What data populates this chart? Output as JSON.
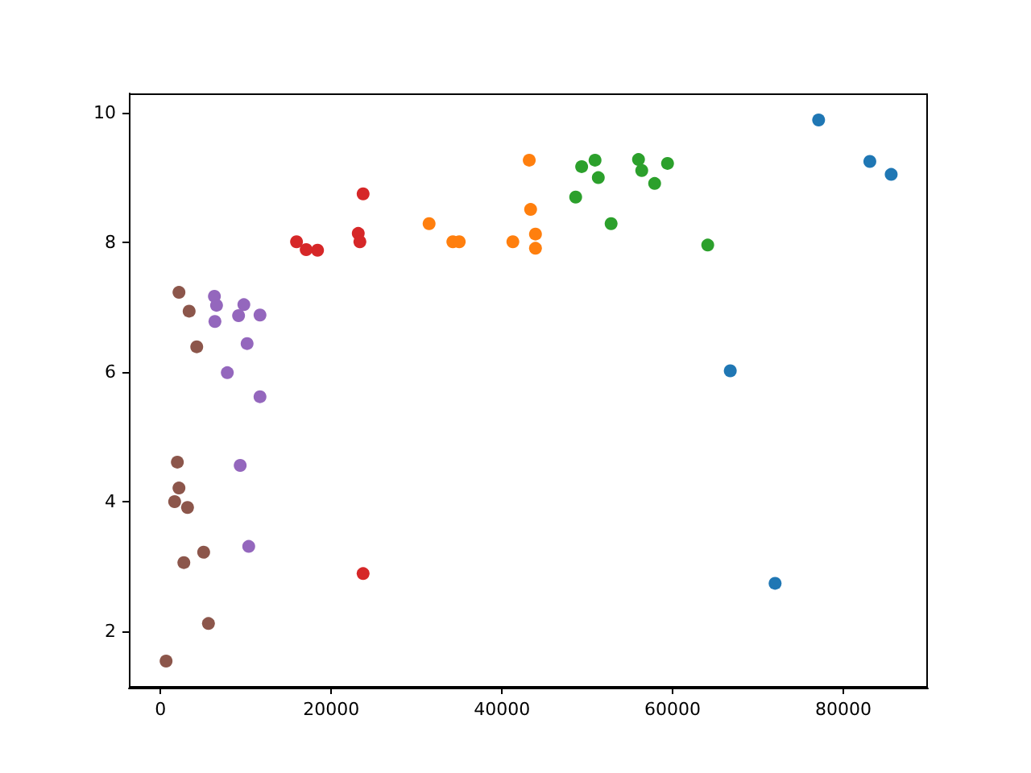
{
  "chart_data": {
    "type": "scatter",
    "marker": "circle",
    "grid": false,
    "xlim": [
      -3700,
      89900
    ],
    "xticks": [
      0,
      20000,
      40000,
      60000,
      80000
    ],
    "ylim": [
      1.13,
      10.3
    ],
    "yticks": [
      2,
      4,
      6,
      8,
      10
    ],
    "series": [
      {
        "color": "#1f77b4",
        "x": [
          77100,
          83100,
          85600,
          66750,
          72000
        ],
        "values": [
          9.89,
          9.25,
          9.05,
          6.02,
          2.74
        ]
      },
      {
        "color": "#ff7f0e",
        "x": [
          43200,
          43360,
          31470,
          34250,
          35000,
          41280,
          43930,
          43930
        ],
        "values": [
          9.27,
          8.51,
          8.29,
          8.01,
          8.01,
          8.01,
          8.13,
          7.91
        ]
      },
      {
        "color": "#2ca02c",
        "x": [
          49340,
          50910,
          51290,
          48640,
          52790,
          56000,
          56380,
          57890,
          59400,
          64110
        ],
        "values": [
          9.17,
          9.27,
          9.0,
          8.7,
          8.29,
          9.28,
          9.11,
          8.91,
          9.22,
          7.96
        ]
      },
      {
        "color": "#d62728",
        "x": [
          23740,
          23170,
          23360,
          23740,
          18400,
          15940,
          17070
        ],
        "values": [
          8.75,
          8.14,
          8.01,
          2.89,
          7.88,
          8.01,
          7.89
        ]
      },
      {
        "color": "#9467bd",
        "x": [
          6320,
          6570,
          9770,
          6380,
          9150,
          11660,
          10150,
          7830,
          11660,
          9340,
          10340
        ],
        "values": [
          7.17,
          7.03,
          7.04,
          6.78,
          6.87,
          6.88,
          6.44,
          5.99,
          5.62,
          4.56,
          3.31
        ]
      },
      {
        "color": "#8c564b",
        "x": [
          2170,
          3360,
          4250,
          1980,
          2170,
          1660,
          3170,
          5060,
          2740,
          5620,
          660
        ],
        "values": [
          7.23,
          6.94,
          6.39,
          4.61,
          4.21,
          4.0,
          3.91,
          3.22,
          3.06,
          2.12,
          1.54
        ]
      }
    ]
  }
}
